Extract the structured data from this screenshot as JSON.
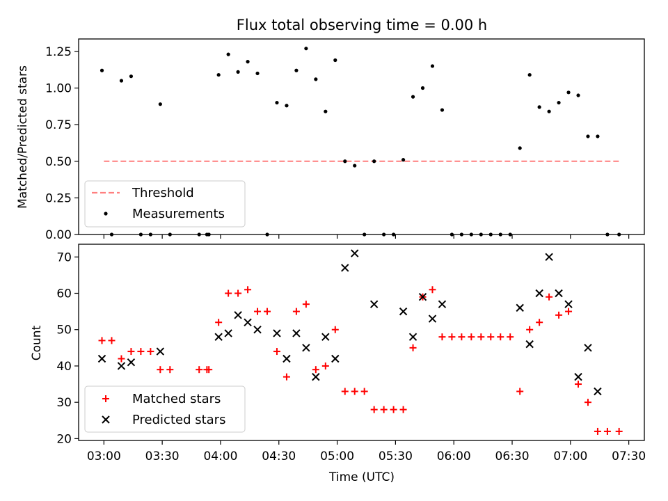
{
  "chart_data": [
    {
      "type": "scatter",
      "title": "Flux total observing time = 0.00 h",
      "xlabel": "",
      "ylabel": "Matched/Predicted stars",
      "ylim": [
        0,
        1.335
      ],
      "yticks": [
        "0.00",
        "0.25",
        "0.50",
        "0.75",
        "1.00",
        "1.25"
      ],
      "legend": "lower-left",
      "threshold": {
        "name": "Threshold",
        "value": 0.5,
        "x_range": [
          "03:00",
          "07:25"
        ],
        "color": "#ff7f7f"
      },
      "series": [
        {
          "name": "Measurements",
          "color": "#000000",
          "points": [
            [
              "02:59",
              1.12
            ],
            [
              "03:04",
              0.0
            ],
            [
              "03:09",
              1.05
            ],
            [
              "03:14",
              1.08
            ],
            [
              "03:19",
              0.0
            ],
            [
              "03:24",
              0.0
            ],
            [
              "03:29",
              0.89
            ],
            [
              "03:34",
              0.0
            ],
            [
              "03:49",
              0.0
            ],
            [
              "03:53",
              0.0
            ],
            [
              "03:54",
              0.0
            ],
            [
              "03:59",
              1.09
            ],
            [
              "04:04",
              1.23
            ],
            [
              "04:09",
              1.11
            ],
            [
              "04:14",
              1.18
            ],
            [
              "04:19",
              1.1
            ],
            [
              "04:24",
              0.0
            ],
            [
              "04:29",
              0.9
            ],
            [
              "04:34",
              0.88
            ],
            [
              "04:39",
              1.12
            ],
            [
              "04:44",
              1.27
            ],
            [
              "04:49",
              1.06
            ],
            [
              "04:54",
              0.84
            ],
            [
              "04:59",
              1.19
            ],
            [
              "05:04",
              0.5
            ],
            [
              "05:09",
              0.47
            ],
            [
              "05:14",
              0.0
            ],
            [
              "05:19",
              0.5
            ],
            [
              "05:24",
              0.0
            ],
            [
              "05:29",
              0.0
            ],
            [
              "05:34",
              0.51
            ],
            [
              "05:39",
              0.94
            ],
            [
              "05:44",
              1.0
            ],
            [
              "05:49",
              1.15
            ],
            [
              "05:54",
              0.85
            ],
            [
              "05:59",
              0.0
            ],
            [
              "06:04",
              0.0
            ],
            [
              "06:09",
              0.0
            ],
            [
              "06:14",
              0.0
            ],
            [
              "06:19",
              0.0
            ],
            [
              "06:24",
              0.0
            ],
            [
              "06:29",
              0.0
            ],
            [
              "06:34",
              0.59
            ],
            [
              "06:39",
              1.09
            ],
            [
              "06:44",
              0.87
            ],
            [
              "06:49",
              0.84
            ],
            [
              "06:54",
              0.9
            ],
            [
              "06:59",
              0.97
            ],
            [
              "07:04",
              0.95
            ],
            [
              "07:09",
              0.67
            ],
            [
              "07:14",
              0.67
            ],
            [
              "07:19",
              0.0
            ],
            [
              "07:25",
              0.0
            ]
          ]
        }
      ]
    },
    {
      "type": "scatter",
      "title": "",
      "xlabel": "Time (UTC)",
      "ylabel": "Count",
      "ylim": [
        19.5,
        73.5
      ],
      "xlim": [
        "02:47",
        "07:38"
      ],
      "xticks": [
        "03:00",
        "03:30",
        "04:00",
        "04:30",
        "05:00",
        "05:30",
        "06:00",
        "06:30",
        "07:00",
        "07:30"
      ],
      "yticks": [
        "20",
        "30",
        "40",
        "50",
        "60",
        "70"
      ],
      "legend": "lower-left",
      "series": [
        {
          "name": "Matched stars",
          "marker": "plus",
          "color": "#ff0000",
          "points": [
            [
              "02:59",
              47
            ],
            [
              "03:04",
              47
            ],
            [
              "03:09",
              42
            ],
            [
              "03:14",
              44
            ],
            [
              "03:19",
              44
            ],
            [
              "03:24",
              44
            ],
            [
              "03:29",
              39
            ],
            [
              "03:34",
              39
            ],
            [
              "03:49",
              39
            ],
            [
              "03:53",
              39
            ],
            [
              "03:54",
              39
            ],
            [
              "03:59",
              52
            ],
            [
              "04:04",
              60
            ],
            [
              "04:09",
              60
            ],
            [
              "04:14",
              61
            ],
            [
              "04:19",
              55
            ],
            [
              "04:24",
              55
            ],
            [
              "04:29",
              44
            ],
            [
              "04:34",
              37
            ],
            [
              "04:39",
              55
            ],
            [
              "04:44",
              57
            ],
            [
              "04:49",
              39
            ],
            [
              "04:54",
              40
            ],
            [
              "04:59",
              50
            ],
            [
              "05:04",
              33
            ],
            [
              "05:09",
              33
            ],
            [
              "05:14",
              33
            ],
            [
              "05:19",
              28
            ],
            [
              "05:24",
              28
            ],
            [
              "05:29",
              28
            ],
            [
              "05:34",
              28
            ],
            [
              "05:39",
              45
            ],
            [
              "05:44",
              59
            ],
            [
              "05:49",
              61
            ],
            [
              "05:54",
              48
            ],
            [
              "05:59",
              48
            ],
            [
              "06:04",
              48
            ],
            [
              "06:09",
              48
            ],
            [
              "06:14",
              48
            ],
            [
              "06:19",
              48
            ],
            [
              "06:24",
              48
            ],
            [
              "06:29",
              48
            ],
            [
              "06:34",
              33
            ],
            [
              "06:39",
              50
            ],
            [
              "06:44",
              52
            ],
            [
              "06:49",
              59
            ],
            [
              "06:54",
              54
            ],
            [
              "06:59",
              55
            ],
            [
              "07:04",
              35
            ],
            [
              "07:09",
              30
            ],
            [
              "07:14",
              22
            ],
            [
              "07:19",
              22
            ],
            [
              "07:25",
              22
            ]
          ]
        },
        {
          "name": "Predicted stars",
          "marker": "x",
          "color": "#000000",
          "points": [
            [
              "02:59",
              42
            ],
            [
              "03:09",
              40
            ],
            [
              "03:14",
              41
            ],
            [
              "03:29",
              44
            ],
            [
              "03:59",
              48
            ],
            [
              "04:04",
              49
            ],
            [
              "04:09",
              54
            ],
            [
              "04:14",
              52
            ],
            [
              "04:19",
              50
            ],
            [
              "04:29",
              49
            ],
            [
              "04:34",
              42
            ],
            [
              "04:39",
              49
            ],
            [
              "04:44",
              45
            ],
            [
              "04:49",
              37
            ],
            [
              "04:54",
              48
            ],
            [
              "04:59",
              42
            ],
            [
              "05:04",
              67
            ],
            [
              "05:09",
              71
            ],
            [
              "05:19",
              57
            ],
            [
              "05:34",
              55
            ],
            [
              "05:39",
              48
            ],
            [
              "05:44",
              59
            ],
            [
              "05:49",
              53
            ],
            [
              "05:54",
              57
            ],
            [
              "06:34",
              56
            ],
            [
              "06:39",
              46
            ],
            [
              "06:44",
              60
            ],
            [
              "06:49",
              70
            ],
            [
              "06:54",
              60
            ],
            [
              "06:59",
              57
            ],
            [
              "07:04",
              37
            ],
            [
              "07:09",
              45
            ],
            [
              "07:14",
              33
            ]
          ]
        }
      ]
    }
  ]
}
